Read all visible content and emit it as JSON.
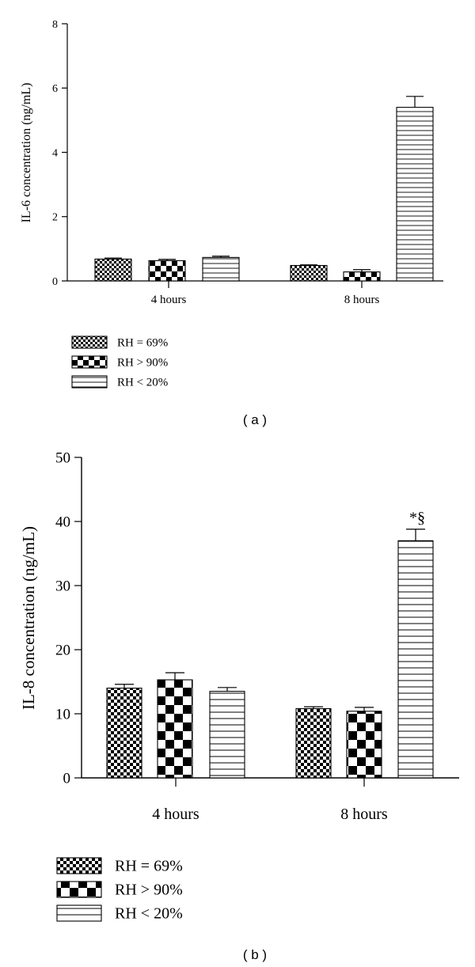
{
  "chart_data": [
    {
      "type": "bar",
      "panel_label": "( a )",
      "ylabel": "IL-6 concentration (ng/mL)",
      "xlabel": "",
      "ylim": [
        0,
        8
      ],
      "yticks": [
        "0",
        "2",
        "4",
        "6",
        "8"
      ],
      "categories": [
        "4 hours",
        "8 hours"
      ],
      "series": [
        {
          "name": "RH = 69%",
          "pattern": "fine-checker",
          "values": [
            0.68,
            0.48
          ],
          "errors": [
            0.03,
            0.02
          ]
        },
        {
          "name": "RH > 90%",
          "pattern": "coarse-checker",
          "values": [
            0.63,
            0.28
          ],
          "errors": [
            0.04,
            0.07
          ]
        },
        {
          "name": "RH < 20%",
          "pattern": "horizontal-lines",
          "values": [
            0.73,
            5.4
          ],
          "errors": [
            0.04,
            0.34
          ]
        }
      ],
      "annotations": [],
      "legend": "below-left"
    },
    {
      "type": "bar",
      "panel_label": "( b )",
      "ylabel": "IL-8 concentration (ng/mL)",
      "xlabel": "",
      "ylim": [
        0,
        50
      ],
      "yticks": [
        "0",
        "10",
        "20",
        "30",
        "40",
        "50"
      ],
      "categories": [
        "4 hours",
        "8 hours"
      ],
      "series": [
        {
          "name": "RH = 69%",
          "pattern": "fine-checker",
          "values": [
            14.0,
            10.8
          ],
          "errors": [
            0.6,
            0.3
          ]
        },
        {
          "name": "RH > 90%",
          "pattern": "coarse-checker",
          "values": [
            15.3,
            10.4
          ],
          "errors": [
            1.1,
            0.6
          ]
        },
        {
          "name": "RH < 20%",
          "pattern": "horizontal-lines",
          "values": [
            13.5,
            37.0
          ],
          "errors": [
            0.6,
            1.8
          ]
        }
      ],
      "annotations": [
        {
          "text": "*§",
          "category": "8 hours",
          "series": "RH < 20%"
        }
      ],
      "legend": "below-left"
    }
  ]
}
